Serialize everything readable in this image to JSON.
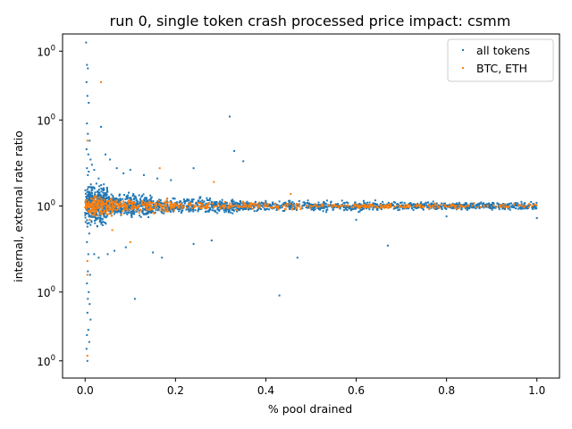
{
  "chart_data": {
    "type": "scatter",
    "title": "run 0, single token crash processed price impact: csmm",
    "xlabel": "% pool drained",
    "ylabel": "internal, external rate ratio",
    "xlim": [
      -0.05,
      1.05
    ],
    "ylim": [
      0.0,
      2.0
    ],
    "x_ticks": [
      {
        "value": 0.0,
        "label": "0.0"
      },
      {
        "value": 0.2,
        "label": "0.2"
      },
      {
        "value": 0.4,
        "label": "0.4"
      },
      {
        "value": 0.6,
        "label": "0.6"
      },
      {
        "value": 0.8,
        "label": "0.8"
      },
      {
        "value": 1.0,
        "label": "1.0"
      }
    ],
    "y_ticks": [
      {
        "value": 0.1,
        "base": "10",
        "exp": "0"
      },
      {
        "value": 0.5,
        "base": "10",
        "exp": "0"
      },
      {
        "value": 1.0,
        "base": "10",
        "exp": "0"
      },
      {
        "value": 1.5,
        "base": "10",
        "exp": "0"
      },
      {
        "value": 1.9,
        "base": "10",
        "exp": "0"
      }
    ],
    "legend": {
      "placement": "upper right",
      "entries": [
        "all tokens",
        "BTC, ETH"
      ]
    },
    "grid": false,
    "series": [
      {
        "name": "all tokens",
        "color": "#1f77b4",
        "points": [
          [
            0.002,
            1.95
          ],
          [
            0.004,
            1.82
          ],
          [
            0.006,
            1.8
          ],
          [
            0.003,
            1.72
          ],
          [
            0.005,
            1.64
          ],
          [
            0.008,
            1.6
          ],
          [
            0.004,
            1.48
          ],
          [
            0.006,
            1.42
          ],
          [
            0.01,
            1.38
          ],
          [
            0.003,
            1.33
          ],
          [
            0.007,
            1.3
          ],
          [
            0.012,
            1.27
          ],
          [
            0.004,
            1.22
          ],
          [
            0.008,
            1.2
          ],
          [
            0.015,
            1.24
          ],
          [
            0.02,
            1.21
          ],
          [
            0.006,
            1.18
          ],
          [
            0.03,
            1.16
          ],
          [
            0.005,
            0.88
          ],
          [
            0.009,
            0.84
          ],
          [
            0.004,
            0.79
          ],
          [
            0.007,
            0.72
          ],
          [
            0.006,
            0.62
          ],
          [
            0.011,
            0.6
          ],
          [
            0.004,
            0.55
          ],
          [
            0.008,
            0.5
          ],
          [
            0.006,
            0.46
          ],
          [
            0.01,
            0.43
          ],
          [
            0.005,
            0.38
          ],
          [
            0.012,
            0.34
          ],
          [
            0.007,
            0.28
          ],
          [
            0.004,
            0.25
          ],
          [
            0.009,
            0.21
          ],
          [
            0.003,
            0.17
          ],
          [
            0.005,
            0.1
          ],
          [
            0.035,
            1.46
          ],
          [
            0.045,
            1.3
          ],
          [
            0.055,
            1.27
          ],
          [
            0.07,
            1.22
          ],
          [
            0.085,
            1.19
          ],
          [
            0.1,
            1.21
          ],
          [
            0.13,
            1.18
          ],
          [
            0.16,
            1.16
          ],
          [
            0.19,
            1.15
          ],
          [
            0.24,
            1.22
          ],
          [
            0.32,
            1.52
          ],
          [
            0.33,
            1.32
          ],
          [
            0.35,
            1.26
          ],
          [
            0.02,
            0.72
          ],
          [
            0.03,
            0.7
          ],
          [
            0.05,
            0.72
          ],
          [
            0.065,
            0.74
          ],
          [
            0.09,
            0.76
          ],
          [
            0.15,
            0.73
          ],
          [
            0.17,
            0.7
          ],
          [
            0.24,
            0.78
          ],
          [
            0.28,
            0.8
          ],
          [
            0.47,
            0.7
          ],
          [
            0.67,
            0.77
          ],
          [
            0.43,
            0.48
          ],
          [
            0.11,
            0.46
          ],
          [
            0.6,
            0.92
          ],
          [
            0.8,
            0.94
          ],
          [
            1.0,
            0.93
          ]
        ],
        "bands": [
          {
            "x_range": [
              0.0,
              0.05
            ],
            "y_range": [
              0.86,
              1.16
            ],
            "count": 420
          },
          {
            "x_range": [
              0.05,
              0.15
            ],
            "y_range": [
              0.91,
              1.09
            ],
            "count": 380
          },
          {
            "x_range": [
              0.15,
              0.35
            ],
            "y_range": [
              0.94,
              1.06
            ],
            "count": 420
          },
          {
            "x_range": [
              0.35,
              0.65
            ],
            "y_range": [
              0.96,
              1.04
            ],
            "count": 420
          },
          {
            "x_range": [
              0.65,
              1.0
            ],
            "y_range": [
              0.97,
              1.03
            ],
            "count": 460
          }
        ]
      },
      {
        "name": "BTC, ETH",
        "color": "#ff7f0e",
        "points": [
          [
            0.035,
            1.72
          ],
          [
            0.005,
            1.38
          ],
          [
            0.165,
            1.22
          ],
          [
            0.285,
            1.14
          ],
          [
            0.455,
            1.07
          ],
          [
            0.1,
            0.79
          ],
          [
            0.005,
            0.68
          ],
          [
            0.005,
            0.6
          ],
          [
            0.005,
            0.13
          ],
          [
            0.02,
            1.05
          ],
          [
            0.06,
            0.86
          ],
          [
            0.01,
            0.92
          ],
          [
            0.08,
            0.95
          ],
          [
            0.12,
            0.96
          ]
        ],
        "bands": [
          {
            "x_range": [
              0.0,
              0.06
            ],
            "y_range": [
              0.92,
              1.08
            ],
            "count": 170
          },
          {
            "x_range": [
              0.06,
              0.2
            ],
            "y_range": [
              0.95,
              1.05
            ],
            "count": 170
          },
          {
            "x_range": [
              0.2,
              0.5
            ],
            "y_range": [
              0.97,
              1.03
            ],
            "count": 160
          },
          {
            "x_range": [
              0.5,
              1.0
            ],
            "y_range": [
              0.98,
              1.02
            ],
            "count": 200
          }
        ]
      }
    ]
  }
}
